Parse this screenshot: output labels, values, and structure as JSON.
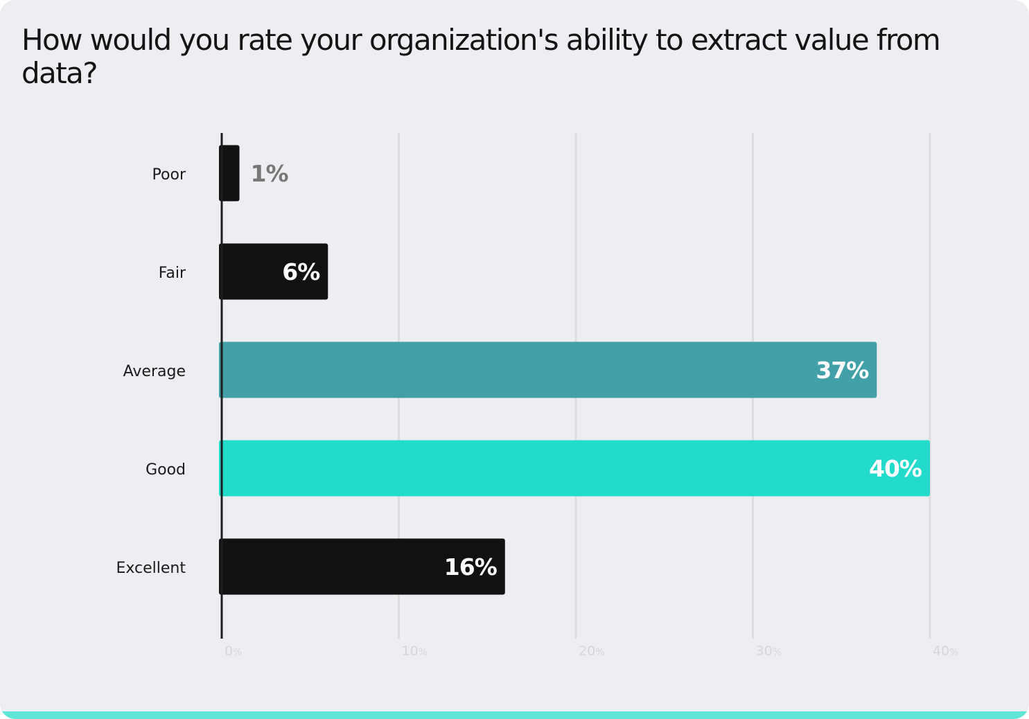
{
  "chart_data": {
    "type": "bar",
    "orientation": "horizontal",
    "title": "How would you rate your organization's ability to extract value from data?",
    "categories": [
      "Poor",
      "Fair",
      "Average",
      "Good",
      "Excellent"
    ],
    "values": [
      1,
      6,
      37,
      40,
      16
    ],
    "value_labels": [
      "1%",
      "6%",
      "37%",
      "40%",
      "16%"
    ],
    "bar_colors": [
      "#111111",
      "#111111",
      "#42a0a8",
      "#23dbca",
      "#111111"
    ],
    "label_colors": [
      "#777777",
      "#ffffff",
      "#ffffff",
      "#ffffff",
      "#ffffff"
    ],
    "xlim": [
      0,
      40
    ],
    "x_ticks": [
      0,
      10,
      20,
      30,
      40
    ],
    "x_tick_labels": [
      {
        "number": "0",
        "unit": "%"
      },
      {
        "number": "10",
        "unit": "%"
      },
      {
        "number": "20",
        "unit": "%"
      },
      {
        "number": "30",
        "unit": "%"
      },
      {
        "number": "40",
        "unit": "%"
      }
    ],
    "xlabel": "",
    "ylabel": "",
    "grid": true,
    "legend": "none"
  }
}
